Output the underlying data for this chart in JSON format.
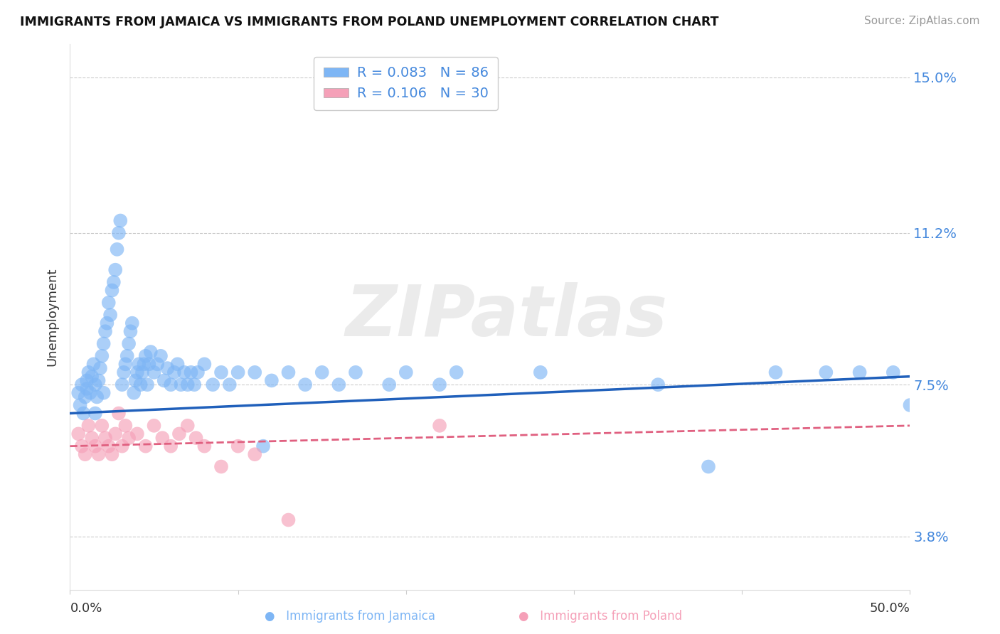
{
  "title": "IMMIGRANTS FROM JAMAICA VS IMMIGRANTS FROM POLAND UNEMPLOYMENT CORRELATION CHART",
  "source": "Source: ZipAtlas.com",
  "ylabel": "Unemployment",
  "y_ticks_pct": [
    3.8,
    7.5,
    11.2,
    15.0
  ],
  "y_labels": [
    "3.8%",
    "7.5%",
    "11.2%",
    "15.0%"
  ],
  "xlim": [
    0.0,
    0.5
  ],
  "ylim": [
    0.025,
    0.158
  ],
  "legend_jamaica_r": "0.083",
  "legend_jamaica_n": "86",
  "legend_poland_r": "0.106",
  "legend_poland_n": "30",
  "jamaica_color": "#7EB6F5",
  "poland_color": "#F5A0B8",
  "jamaica_line_color": "#2060BB",
  "poland_line_color": "#E06080",
  "watermark": "ZIPatlas",
  "jamaica_x": [
    0.005,
    0.006,
    0.007,
    0.008,
    0.009,
    0.01,
    0.01,
    0.011,
    0.012,
    0.013,
    0.014,
    0.015,
    0.015,
    0.016,
    0.017,
    0.018,
    0.019,
    0.02,
    0.02,
    0.021,
    0.022,
    0.023,
    0.024,
    0.025,
    0.026,
    0.027,
    0.028,
    0.029,
    0.03,
    0.031,
    0.032,
    0.033,
    0.034,
    0.035,
    0.036,
    0.037,
    0.038,
    0.039,
    0.04,
    0.041,
    0.042,
    0.043,
    0.044,
    0.045,
    0.046,
    0.047,
    0.048,
    0.05,
    0.052,
    0.054,
    0.056,
    0.058,
    0.06,
    0.062,
    0.064,
    0.066,
    0.068,
    0.07,
    0.072,
    0.074,
    0.076,
    0.08,
    0.085,
    0.09,
    0.095,
    0.1,
    0.11,
    0.115,
    0.12,
    0.13,
    0.14,
    0.15,
    0.16,
    0.17,
    0.19,
    0.2,
    0.22,
    0.23,
    0.28,
    0.35,
    0.38,
    0.42,
    0.45,
    0.47,
    0.49,
    0.5
  ],
  "jamaica_y": [
    0.073,
    0.07,
    0.075,
    0.068,
    0.072,
    0.074,
    0.076,
    0.078,
    0.073,
    0.077,
    0.08,
    0.068,
    0.075,
    0.072,
    0.076,
    0.079,
    0.082,
    0.073,
    0.085,
    0.088,
    0.09,
    0.095,
    0.092,
    0.098,
    0.1,
    0.103,
    0.108,
    0.112,
    0.115,
    0.075,
    0.078,
    0.08,
    0.082,
    0.085,
    0.088,
    0.09,
    0.073,
    0.076,
    0.078,
    0.08,
    0.075,
    0.078,
    0.08,
    0.082,
    0.075,
    0.08,
    0.083,
    0.078,
    0.08,
    0.082,
    0.076,
    0.079,
    0.075,
    0.078,
    0.08,
    0.075,
    0.078,
    0.075,
    0.078,
    0.075,
    0.078,
    0.08,
    0.075,
    0.078,
    0.075,
    0.078,
    0.078,
    0.06,
    0.076,
    0.078,
    0.075,
    0.078,
    0.075,
    0.078,
    0.075,
    0.078,
    0.075,
    0.078,
    0.078,
    0.075,
    0.055,
    0.078,
    0.078,
    0.078,
    0.078,
    0.07
  ],
  "poland_x": [
    0.005,
    0.007,
    0.009,
    0.011,
    0.013,
    0.015,
    0.017,
    0.019,
    0.021,
    0.023,
    0.025,
    0.027,
    0.029,
    0.031,
    0.033,
    0.035,
    0.04,
    0.045,
    0.05,
    0.055,
    0.06,
    0.065,
    0.07,
    0.075,
    0.08,
    0.09,
    0.1,
    0.11,
    0.13,
    0.22
  ],
  "poland_y": [
    0.063,
    0.06,
    0.058,
    0.065,
    0.062,
    0.06,
    0.058,
    0.065,
    0.062,
    0.06,
    0.058,
    0.063,
    0.068,
    0.06,
    0.065,
    0.062,
    0.063,
    0.06,
    0.065,
    0.062,
    0.06,
    0.063,
    0.065,
    0.062,
    0.06,
    0.055,
    0.06,
    0.058,
    0.042,
    0.065
  ]
}
